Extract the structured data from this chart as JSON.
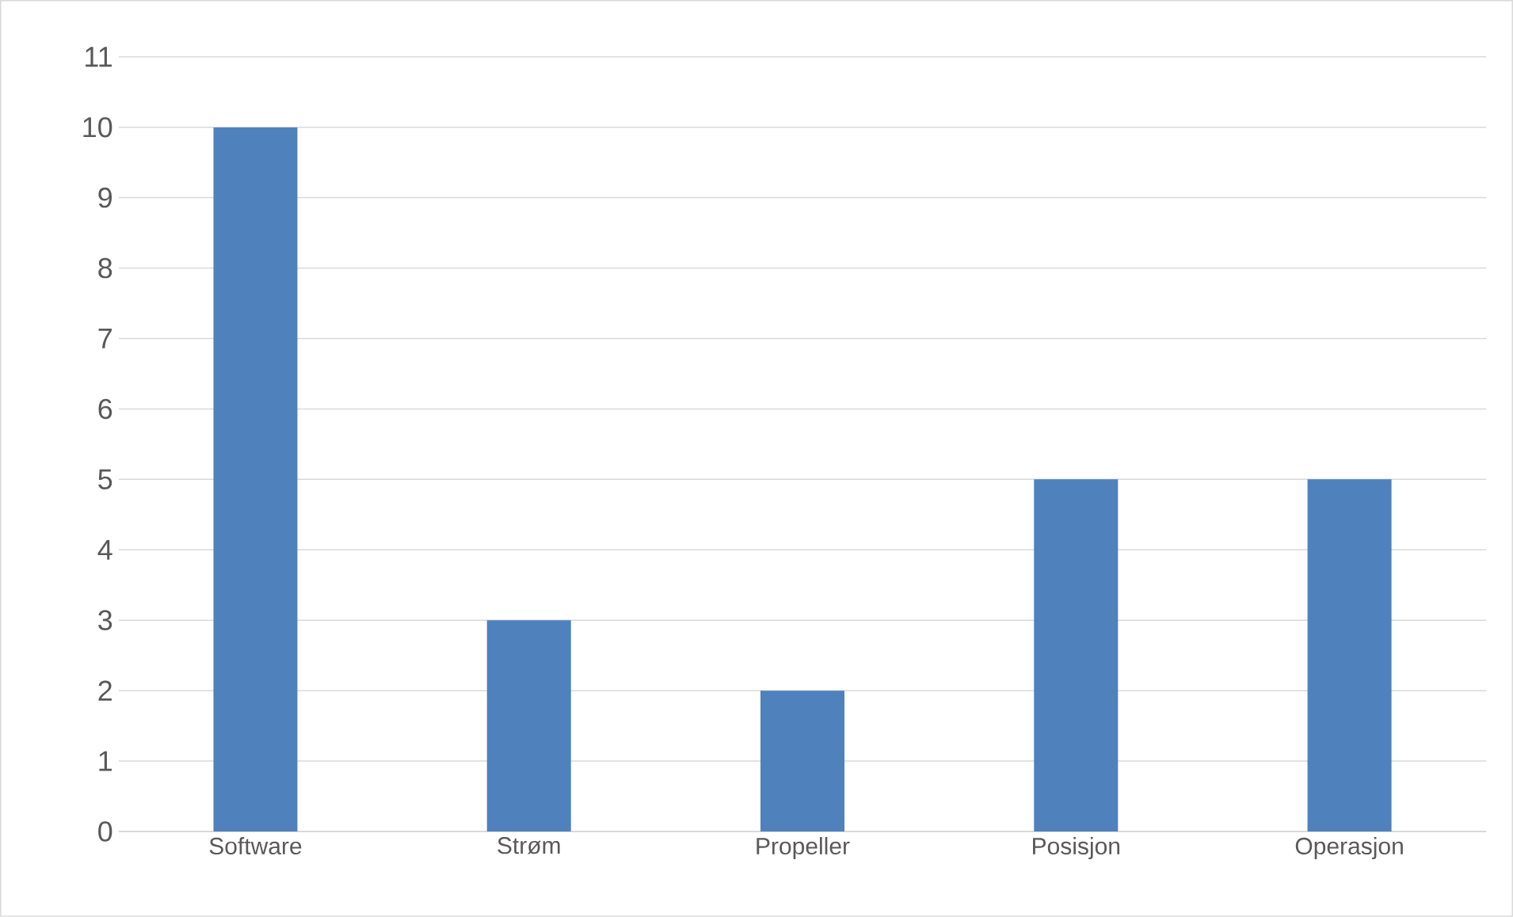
{
  "chart_data": {
    "type": "bar",
    "categories": [
      "Software",
      "Strøm",
      "Propeller",
      "Posisjon",
      "Operasjon"
    ],
    "values": [
      10,
      3,
      2,
      5,
      5
    ],
    "color": "#4f81bd",
    "ylim": [
      0,
      11
    ],
    "yticks": [
      0,
      1,
      2,
      3,
      4,
      5,
      6,
      7,
      8,
      9,
      10,
      11
    ],
    "grid": "y"
  }
}
